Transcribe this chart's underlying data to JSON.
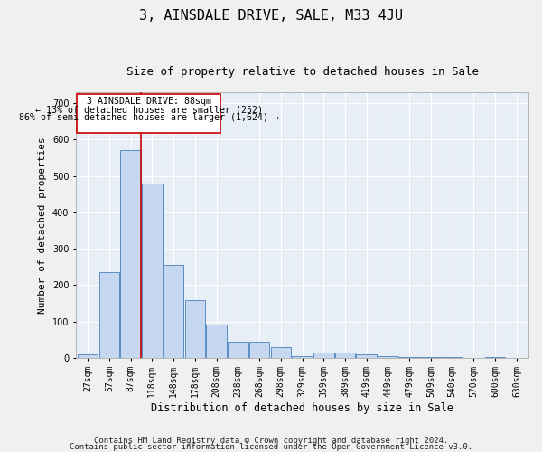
{
  "title": "3, AINSDALE DRIVE, SALE, M33 4JU",
  "subtitle": "Size of property relative to detached houses in Sale",
  "xlabel": "Distribution of detached houses by size in Sale",
  "ylabel": "Number of detached properties",
  "categories": [
    "27sqm",
    "57sqm",
    "87sqm",
    "118sqm",
    "148sqm",
    "178sqm",
    "208sqm",
    "238sqm",
    "268sqm",
    "298sqm",
    "329sqm",
    "359sqm",
    "389sqm",
    "419sqm",
    "449sqm",
    "479sqm",
    "509sqm",
    "540sqm",
    "570sqm",
    "600sqm",
    "630sqm"
  ],
  "values": [
    10,
    235,
    570,
    480,
    255,
    160,
    93,
    45,
    45,
    30,
    5,
    15,
    15,
    10,
    5,
    2,
    2,
    2,
    0,
    2,
    0
  ],
  "bar_color": "#c5d8f0",
  "bar_edge_color": "#5b8ec4",
  "background_color": "#e8eef6",
  "grid_color": "#ffffff",
  "annotation_line_color": "#cc0000",
  "annotation_text_line1": "3 AINSDALE DRIVE: 88sqm",
  "annotation_text_line2": "← 13% of detached houses are smaller (252)",
  "annotation_text_line3": "86% of semi-detached houses are larger (1,624) →",
  "ylim": [
    0,
    730
  ],
  "yticks": [
    0,
    100,
    200,
    300,
    400,
    500,
    600,
    700
  ],
  "footnote1": "Contains HM Land Registry data © Crown copyright and database right 2024.",
  "footnote2": "Contains public sector information licensed under the Open Government Licence v3.0.",
  "title_fontsize": 11,
  "subtitle_fontsize": 9,
  "tick_fontsize": 7,
  "ylabel_fontsize": 8,
  "xlabel_fontsize": 8.5,
  "footnote_fontsize": 6.5,
  "fig_facecolor": "#f0f0f0"
}
